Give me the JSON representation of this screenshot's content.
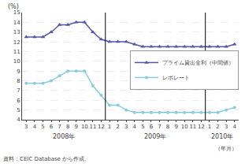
{
  "chart_data": {
    "type": "line",
    "categories": [
      "3",
      "4",
      "5",
      "6",
      "7",
      "8",
      "9",
      "10",
      "11",
      "12",
      "1",
      "2",
      "3",
      "4",
      "5",
      "6",
      "7",
      "8",
      "9",
      "10",
      "11",
      "12",
      "1",
      "2",
      "3",
      "4"
    ],
    "series": [
      {
        "name": "プライム貸出金利（中間値）",
        "color": "#5555aa",
        "marker": "triangle-up",
        "line_style": "solid",
        "values": [
          12.5,
          12.5,
          12.5,
          13.0,
          13.75,
          13.75,
          14.0,
          14.0,
          13.0,
          12.25,
          12.0,
          12.0,
          12.0,
          11.75,
          11.5,
          11.5,
          11.5,
          11.5,
          11.5,
          11.5,
          11.5,
          11.5,
          11.5,
          11.5,
          11.5,
          11.75
        ]
      },
      {
        "name": "レポレート",
        "color": "#88ccdd",
        "marker": "circle",
        "line_style": "solid",
        "values": [
          7.75,
          7.75,
          7.75,
          8.0,
          8.5,
          9.0,
          9.0,
          9.0,
          7.5,
          6.5,
          5.5,
          5.5,
          5.0,
          4.75,
          4.75,
          4.75,
          4.75,
          4.75,
          4.75,
          4.75,
          4.75,
          4.75,
          4.75,
          4.75,
          5.0,
          5.25
        ]
      }
    ],
    "ylabel": "(%)",
    "xlabel": "（年月）",
    "annotations": [
      "2008年",
      "2009年",
      "2010年"
    ],
    "source": "資料：CEIC Database から作成。",
    "ylim": [
      4,
      15
    ],
    "yticks": [
      4,
      5,
      6,
      7,
      8,
      9,
      10,
      11,
      12,
      13,
      14,
      15
    ],
    "grid": true,
    "legend": "lower right"
  }
}
